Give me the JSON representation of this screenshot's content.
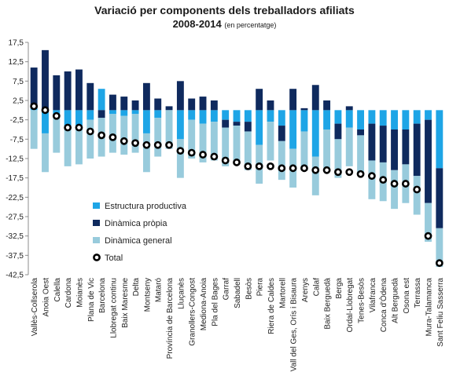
{
  "title": "Variació per components dels treballadors afiliats",
  "subtitle_main": "2008-2014",
  "subtitle_note": "(en percentatge)",
  "chart_data": {
    "type": "bar",
    "title": "Variació per components dels treballadors afiliats",
    "subtitle": "2008-2014 (en percentatge)",
    "xlabel": "",
    "ylabel": "",
    "ylim": [
      -42.5,
      17.5
    ],
    "yticks": [
      17.5,
      12.5,
      7.5,
      2.5,
      -2.5,
      -7.5,
      -12.5,
      -17.5,
      -22.5,
      -27.5,
      -32.5,
      -37.5,
      -42.5
    ],
    "ytick_labels": [
      "17,5",
      "12,5",
      "7,5",
      "2,5",
      "-2,5",
      "-7,5",
      "-12,5",
      "-17,5",
      "-22,5",
      "-27,5",
      "-32,5",
      "-37,5",
      "-42,5"
    ],
    "stacked": true,
    "legend_position": "left-center",
    "grid": false,
    "categories": [
      "Vallès-Collserola",
      "Anoia Oest",
      "Calella",
      "Cardona",
      "Moianès",
      "Plana de Vic",
      "Barcelona",
      "Llobregat continu",
      "Baix Maresme",
      "Delta",
      "Montseny",
      "Mataró",
      "Província de Barcelona",
      "Lluçanès",
      "Granollers-Congost",
      "Mediona-Anoia",
      "Pla del Bages",
      "Garraf",
      "Sabadell",
      "Besòs",
      "Piera",
      "Riera de Caldes",
      "Martorell",
      "Vall del Ges, Orís i Bisaura",
      "Arenys",
      "Calaf",
      "Baix Berguedà",
      "Berga",
      "Ordal-Llobregat",
      "Tenes-Besòs",
      "Vilafranca",
      "Conca d'Òdena",
      "Alt Berguedà",
      "Osona est",
      "Terrassa",
      "Mura-Talamanca",
      "Sant Feliu Sasserra"
    ],
    "series": [
      {
        "name": "Estructura productiva",
        "color": "#1ea5e6",
        "values": [
          0.5,
          -6.0,
          -1.0,
          -4.5,
          -4.0,
          -2.5,
          5.5,
          -1.0,
          -1.5,
          -1.0,
          -6.0,
          -2.0,
          0.0,
          -7.5,
          -2.5,
          -3.5,
          -3.0,
          -2.5,
          -3.0,
          -3.0,
          -9.0,
          -3.0,
          -4.0,
          -10.0,
          -5.5,
          -12.0,
          -5.0,
          -3.5,
          -4.5,
          -5.0,
          -3.5,
          -4.0,
          -5.0,
          -5.0,
          -3.5,
          -2.5,
          -15.0
        ]
      },
      {
        "name": "Dinàmica pròpia",
        "color": "#0f2a5e",
        "values": [
          10.5,
          15.5,
          9.0,
          10.0,
          10.5,
          7.0,
          -2.0,
          4.0,
          3.5,
          2.5,
          7.0,
          3.0,
          1.0,
          7.5,
          3.0,
          3.5,
          2.5,
          -2.0,
          -1.0,
          -2.5,
          5.5,
          2.5,
          -4.0,
          5.5,
          0.5,
          6.5,
          2.5,
          -4.0,
          1.0,
          -1.5,
          -9.5,
          -9.5,
          -10.5,
          -9.0,
          -13.5,
          -21.5,
          -15.5
        ]
      },
      {
        "name": "Dinàmica general",
        "color": "#98cbdc",
        "values": [
          -10.0,
          -10.0,
          -10.0,
          -10.0,
          -10.0,
          -10.0,
          -10.0,
          -10.0,
          -10.0,
          -10.0,
          -10.0,
          -10.0,
          -10.0,
          -10.0,
          -10.0,
          -10.0,
          -10.0,
          -10.0,
          -10.0,
          -10.0,
          -10.0,
          -10.0,
          -10.0,
          -10.0,
          -10.0,
          -10.0,
          -10.0,
          -10.0,
          -10.0,
          -10.0,
          -10.0,
          -10.0,
          -10.0,
          -10.0,
          -10.0,
          -10.0,
          -10.0
        ]
      },
      {
        "name": "Total",
        "type": "point",
        "values": [
          1.0,
          0.0,
          -1.5,
          -4.5,
          -4.5,
          -5.5,
          -6.5,
          -7.0,
          -8.0,
          -8.5,
          -9.0,
          -9.0,
          -9.0,
          -10.5,
          -11.0,
          -11.5,
          -12.0,
          -13.0,
          -13.5,
          -14.5,
          -14.5,
          -14.5,
          -15.0,
          -15.0,
          -15.0,
          -15.5,
          -15.5,
          -16.0,
          -16.0,
          -16.5,
          -17.0,
          -18.0,
          -19.0,
          -19.0,
          -20.5,
          -32.5,
          -39.5
        ]
      }
    ]
  }
}
